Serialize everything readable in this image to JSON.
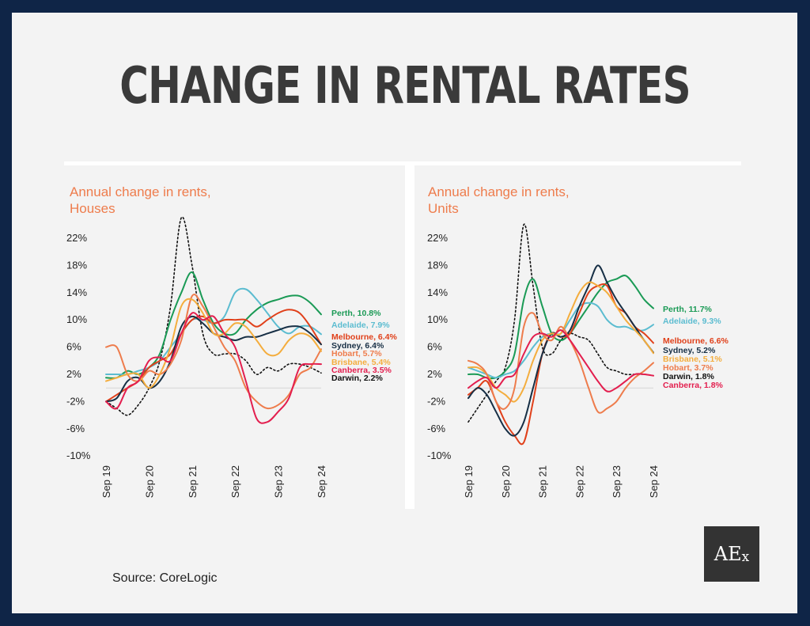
{
  "title": "CHANGE IN RENTAL RATES",
  "source": "Source: CoreLogic",
  "logo": "AEx",
  "colors": {
    "Perth": "#1a9a55",
    "Adelaide": "#5bbcd0",
    "Melbourne": "#e0401a",
    "Sydney": "#172f45",
    "Hobart": "#ee7c4c",
    "Brisbane": "#f4ad3d",
    "Canberra": "#e31e4e",
    "Darwin": "#111111"
  },
  "chart_data": [
    {
      "type": "line",
      "title": "Annual change in rents,",
      "subtitle": "Houses",
      "x_ticks": [
        "Sep 19",
        "Sep 20",
        "Sep 21",
        "Sep 22",
        "Sep 23",
        "Sep 24"
      ],
      "y_ticks": [
        "22%",
        "18%",
        "14%",
        "10%",
        "6%",
        "2%",
        "-2%",
        "-6%",
        "-10%"
      ],
      "ylim": [
        -10,
        24
      ],
      "zero_line": true,
      "series": [
        {
          "name": "Perth",
          "value_label": "Perth, 10.8%",
          "x": [
            0,
            3,
            6,
            9,
            12,
            15,
            18,
            21,
            24,
            27,
            30,
            33,
            36,
            39,
            42,
            45,
            48,
            51,
            54,
            57,
            60
          ],
          "values": [
            1.5,
            1.5,
            2.5,
            2,
            3,
            5,
            10,
            14,
            17,
            13,
            9.5,
            8,
            8,
            10,
            11.5,
            12.5,
            13,
            13.5,
            13.5,
            12.5,
            10.8
          ]
        },
        {
          "name": "Adelaide",
          "value_label": "Adelaide, 7.9%",
          "x": [
            0,
            3,
            6,
            9,
            12,
            15,
            18,
            21,
            24,
            27,
            30,
            33,
            36,
            39,
            42,
            45,
            48,
            51,
            54,
            57,
            60
          ],
          "values": [
            2,
            2,
            2,
            2.5,
            3,
            4,
            6,
            8,
            10,
            10,
            9.5,
            10.5,
            14,
            14.5,
            13,
            11,
            9,
            8,
            9,
            9,
            7.9
          ]
        },
        {
          "name": "Melbourne",
          "value_label": "Melbourne, 6.4%",
          "x": [
            0,
            3,
            6,
            9,
            12,
            15,
            18,
            21,
            24,
            27,
            30,
            33,
            36,
            39,
            42,
            45,
            48,
            51,
            54,
            57,
            60
          ],
          "values": [
            -2,
            -1,
            0,
            1,
            3,
            4,
            5,
            8,
            10,
            10.5,
            9.5,
            10,
            10,
            10,
            9,
            10,
            11,
            11.5,
            11,
            9,
            6.4
          ]
        },
        {
          "name": "Sydney",
          "value_label": "Sydney, 6.4%",
          "x": [
            0,
            3,
            6,
            9,
            12,
            15,
            18,
            21,
            24,
            27,
            30,
            33,
            36,
            39,
            42,
            45,
            48,
            51,
            54,
            57,
            60
          ],
          "values": [
            -2,
            -1.5,
            1,
            1.5,
            0,
            1,
            4,
            9,
            10.5,
            9.5,
            8,
            7.5,
            7,
            7.5,
            7.5,
            8,
            8.5,
            9,
            9,
            8,
            6.4
          ]
        },
        {
          "name": "Hobart",
          "value_label": "Hobart, 5.7%",
          "x": [
            0,
            3,
            6,
            9,
            12,
            15,
            18,
            21,
            24,
            27,
            30,
            33,
            36,
            39,
            42,
            45,
            48,
            51,
            54,
            57,
            60
          ],
          "values": [
            6,
            6,
            2,
            1,
            2.5,
            2,
            3.5,
            7,
            13.5,
            12,
            9,
            6,
            4,
            0,
            -2,
            -3,
            -2.5,
            -1,
            2,
            3,
            5.7
          ]
        },
        {
          "name": "Brisbane",
          "value_label": "Brisbane, 5.4%",
          "x": [
            0,
            3,
            6,
            9,
            12,
            15,
            18,
            21,
            24,
            27,
            30,
            33,
            36,
            39,
            42,
            45,
            48,
            51,
            54,
            57,
            60
          ],
          "values": [
            1,
            1.5,
            2,
            2,
            0,
            2,
            6,
            12,
            13,
            11,
            8,
            8,
            9.5,
            9,
            7,
            5,
            5,
            7,
            8,
            7.5,
            5.4
          ]
        },
        {
          "name": "Canberra",
          "value_label": "Canberra, 3.5%",
          "x": [
            0,
            3,
            6,
            9,
            12,
            15,
            18,
            21,
            24,
            27,
            30,
            33,
            36,
            39,
            42,
            45,
            48,
            51,
            54,
            57,
            60
          ],
          "values": [
            -2,
            -3,
            0,
            1,
            4,
            4.5,
            4,
            8,
            11,
            10,
            10.5,
            8,
            6,
            1,
            -4.5,
            -5,
            -3.5,
            -1.5,
            3,
            3.5,
            3.5
          ]
        },
        {
          "name": "Darwin",
          "value_label": "Darwin, 2.2%",
          "dashed": true,
          "x": [
            0,
            3,
            6,
            9,
            12,
            15,
            18,
            21,
            24,
            27,
            30,
            33,
            36,
            39,
            42,
            45,
            48,
            51,
            54,
            57,
            60
          ],
          "values": [
            -2,
            -3,
            -4,
            -2.5,
            0,
            4,
            12,
            25,
            18,
            8,
            5,
            5,
            5,
            4,
            2,
            3,
            2.5,
            3.5,
            3.5,
            3,
            2.2
          ]
        }
      ]
    },
    {
      "type": "line",
      "title": "Annual change in rents,",
      "subtitle": "Units",
      "x_ticks": [
        "Sep 19",
        "Sep 20",
        "Sep 21",
        "Sep 22",
        "Sep 23",
        "Sep 24"
      ],
      "y_ticks": [
        "22%",
        "18%",
        "14%",
        "10%",
        "6%",
        "2%",
        "-2%",
        "-6%",
        "-10%"
      ],
      "ylim": [
        -10,
        24
      ],
      "zero_line": true,
      "series": [
        {
          "name": "Perth",
          "value_label": "Perth, 11.7%",
          "x": [
            0,
            3,
            6,
            9,
            12,
            15,
            18,
            21,
            24,
            27,
            30,
            33,
            36,
            39,
            42,
            45,
            48,
            51,
            54,
            57,
            60
          ],
          "values": [
            2,
            2,
            1.5,
            1.5,
            2.5,
            5,
            13,
            16,
            12,
            8,
            7,
            8,
            10,
            12,
            14,
            15.5,
            16,
            16.5,
            15,
            13,
            11.7
          ]
        },
        {
          "name": "Adelaide",
          "value_label": "Adelaide, 9.3%",
          "x": [
            0,
            3,
            6,
            9,
            12,
            15,
            18,
            21,
            24,
            27,
            30,
            33,
            36,
            39,
            42,
            45,
            48,
            51,
            54,
            57,
            60
          ],
          "values": [
            3,
            2.5,
            2,
            1.5,
            2,
            2.5,
            4,
            6,
            7.5,
            8,
            8,
            10,
            12,
            12.5,
            12,
            10,
            9,
            9,
            8.5,
            8.5,
            9.3
          ]
        },
        {
          "name": "Melbourne",
          "value_label": "Melbourne, 6.6%",
          "x": [
            0,
            3,
            6,
            9,
            12,
            15,
            18,
            21,
            24,
            27,
            30,
            33,
            36,
            39,
            42,
            45,
            48,
            51,
            54,
            57,
            60
          ],
          "values": [
            -1,
            0,
            1,
            -2,
            -5,
            -7,
            -8,
            -2,
            5,
            8,
            7.5,
            8,
            11,
            14,
            15,
            15,
            12,
            11,
            9,
            8,
            6.6
          ]
        },
        {
          "name": "Sydney",
          "value_label": "Sydney, 5.2%",
          "x": [
            0,
            3,
            6,
            9,
            12,
            15,
            18,
            21,
            24,
            27,
            30,
            33,
            36,
            39,
            42,
            45,
            48,
            51,
            54,
            57,
            60
          ],
          "values": [
            -1.5,
            0,
            -1,
            -3.5,
            -6,
            -7,
            -5,
            0,
            5,
            8,
            7.5,
            8.5,
            12,
            15,
            18,
            15.5,
            13,
            11,
            9,
            7,
            5.2
          ]
        },
        {
          "name": "Brisbane",
          "value_label": "Brisbane, 5.1%",
          "x": [
            0,
            3,
            6,
            9,
            12,
            15,
            18,
            21,
            24,
            27,
            30,
            33,
            36,
            39,
            42,
            45,
            48,
            51,
            54,
            57,
            60
          ],
          "values": [
            3,
            3,
            2,
            0,
            -1,
            -2,
            0,
            4,
            7,
            8,
            8,
            11,
            14,
            15.5,
            15,
            14,
            12,
            10,
            8.5,
            7,
            5.1
          ]
        },
        {
          "name": "Hobart",
          "value_label": "Hobart, 3.7%",
          "x": [
            0,
            3,
            6,
            9,
            12,
            15,
            18,
            21,
            24,
            27,
            30,
            33,
            36,
            39,
            42,
            45,
            48,
            51,
            54,
            57,
            60
          ],
          "values": [
            4,
            3.5,
            2,
            -2,
            -3,
            0,
            9,
            11,
            8,
            7,
            9,
            7,
            4,
            0,
            -3.5,
            -3,
            -2,
            0,
            1.5,
            2.5,
            3.7
          ]
        },
        {
          "name": "Darwin",
          "value_label": "Darwin, 1.8%",
          "dashed": true,
          "x": [
            0,
            3,
            6,
            9,
            12,
            15,
            18,
            21,
            24,
            27,
            30,
            33,
            36,
            39,
            42,
            45,
            48,
            51,
            54,
            57,
            60
          ],
          "values": [
            -5,
            -3,
            -1,
            1,
            3,
            10,
            24,
            15,
            6,
            5,
            7,
            8,
            7.5,
            7,
            5,
            3,
            2.5,
            2,
            2,
            2,
            1.8
          ]
        },
        {
          "name": "Canberra",
          "value_label": "Canberra, 1.8%",
          "x": [
            0,
            3,
            6,
            9,
            12,
            15,
            18,
            21,
            24,
            27,
            30,
            33,
            36,
            39,
            42,
            45,
            48,
            51,
            54,
            57,
            60
          ],
          "values": [
            0,
            1,
            1.5,
            0,
            1.5,
            2,
            5,
            7.5,
            8,
            7.5,
            8.5,
            7,
            5,
            3,
            1,
            -0.5,
            0,
            1,
            2,
            2,
            1.8
          ]
        }
      ]
    }
  ]
}
